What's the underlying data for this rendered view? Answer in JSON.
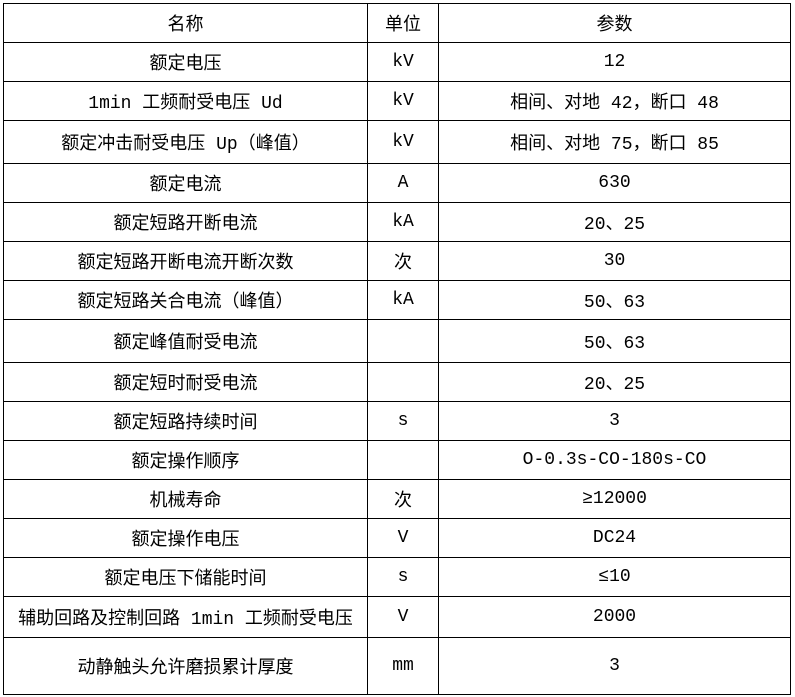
{
  "table": {
    "border_color": "#000000",
    "background_color": "#ffffff",
    "text_color": "#000000",
    "headers": [
      "名称",
      "单位",
      "参数"
    ],
    "rows": [
      {
        "name": "额定电压",
        "unit": "kV",
        "value": "12"
      },
      {
        "name": "1min 工频耐受电压 Ud",
        "unit": "kV",
        "value": "相间、对地 42，断口 48"
      },
      {
        "name": "额定冲击耐受电压 Up（峰值）",
        "unit": "kV",
        "value": "相间、对地 75，断口 85"
      },
      {
        "name": "额定电流",
        "unit": "A",
        "value": "630"
      },
      {
        "name": "额定短路开断电流",
        "unit": "kA",
        "value": "20、25"
      },
      {
        "name": "额定短路开断电流开断次数",
        "unit": "次",
        "value": "30"
      },
      {
        "name": "额定短路关合电流（峰值）",
        "unit": "kA",
        "value": "50、63"
      },
      {
        "name": "额定峰值耐受电流",
        "unit": "",
        "value": "50、63"
      },
      {
        "name": "额定短时耐受电流",
        "unit": "",
        "value": "20、25"
      },
      {
        "name": "额定短路持续时间",
        "unit": "s",
        "value": "3"
      },
      {
        "name": "额定操作顺序",
        "unit": "",
        "value": "O-0.3s-CO-180s-CO"
      },
      {
        "name": "机械寿命",
        "unit": "次",
        "value": "≥12000"
      },
      {
        "name": "额定操作电压",
        "unit": "V",
        "value": "DC24"
      },
      {
        "name": "额定电压下储能时间",
        "unit": "s",
        "value": "≤10"
      },
      {
        "name": "辅助回路及控制回路 1min 工频耐受电压",
        "unit": "V",
        "value": "2000"
      },
      {
        "name": "动静触头允许磨损累计厚度",
        "unit": "mm",
        "value": "3"
      }
    ]
  }
}
